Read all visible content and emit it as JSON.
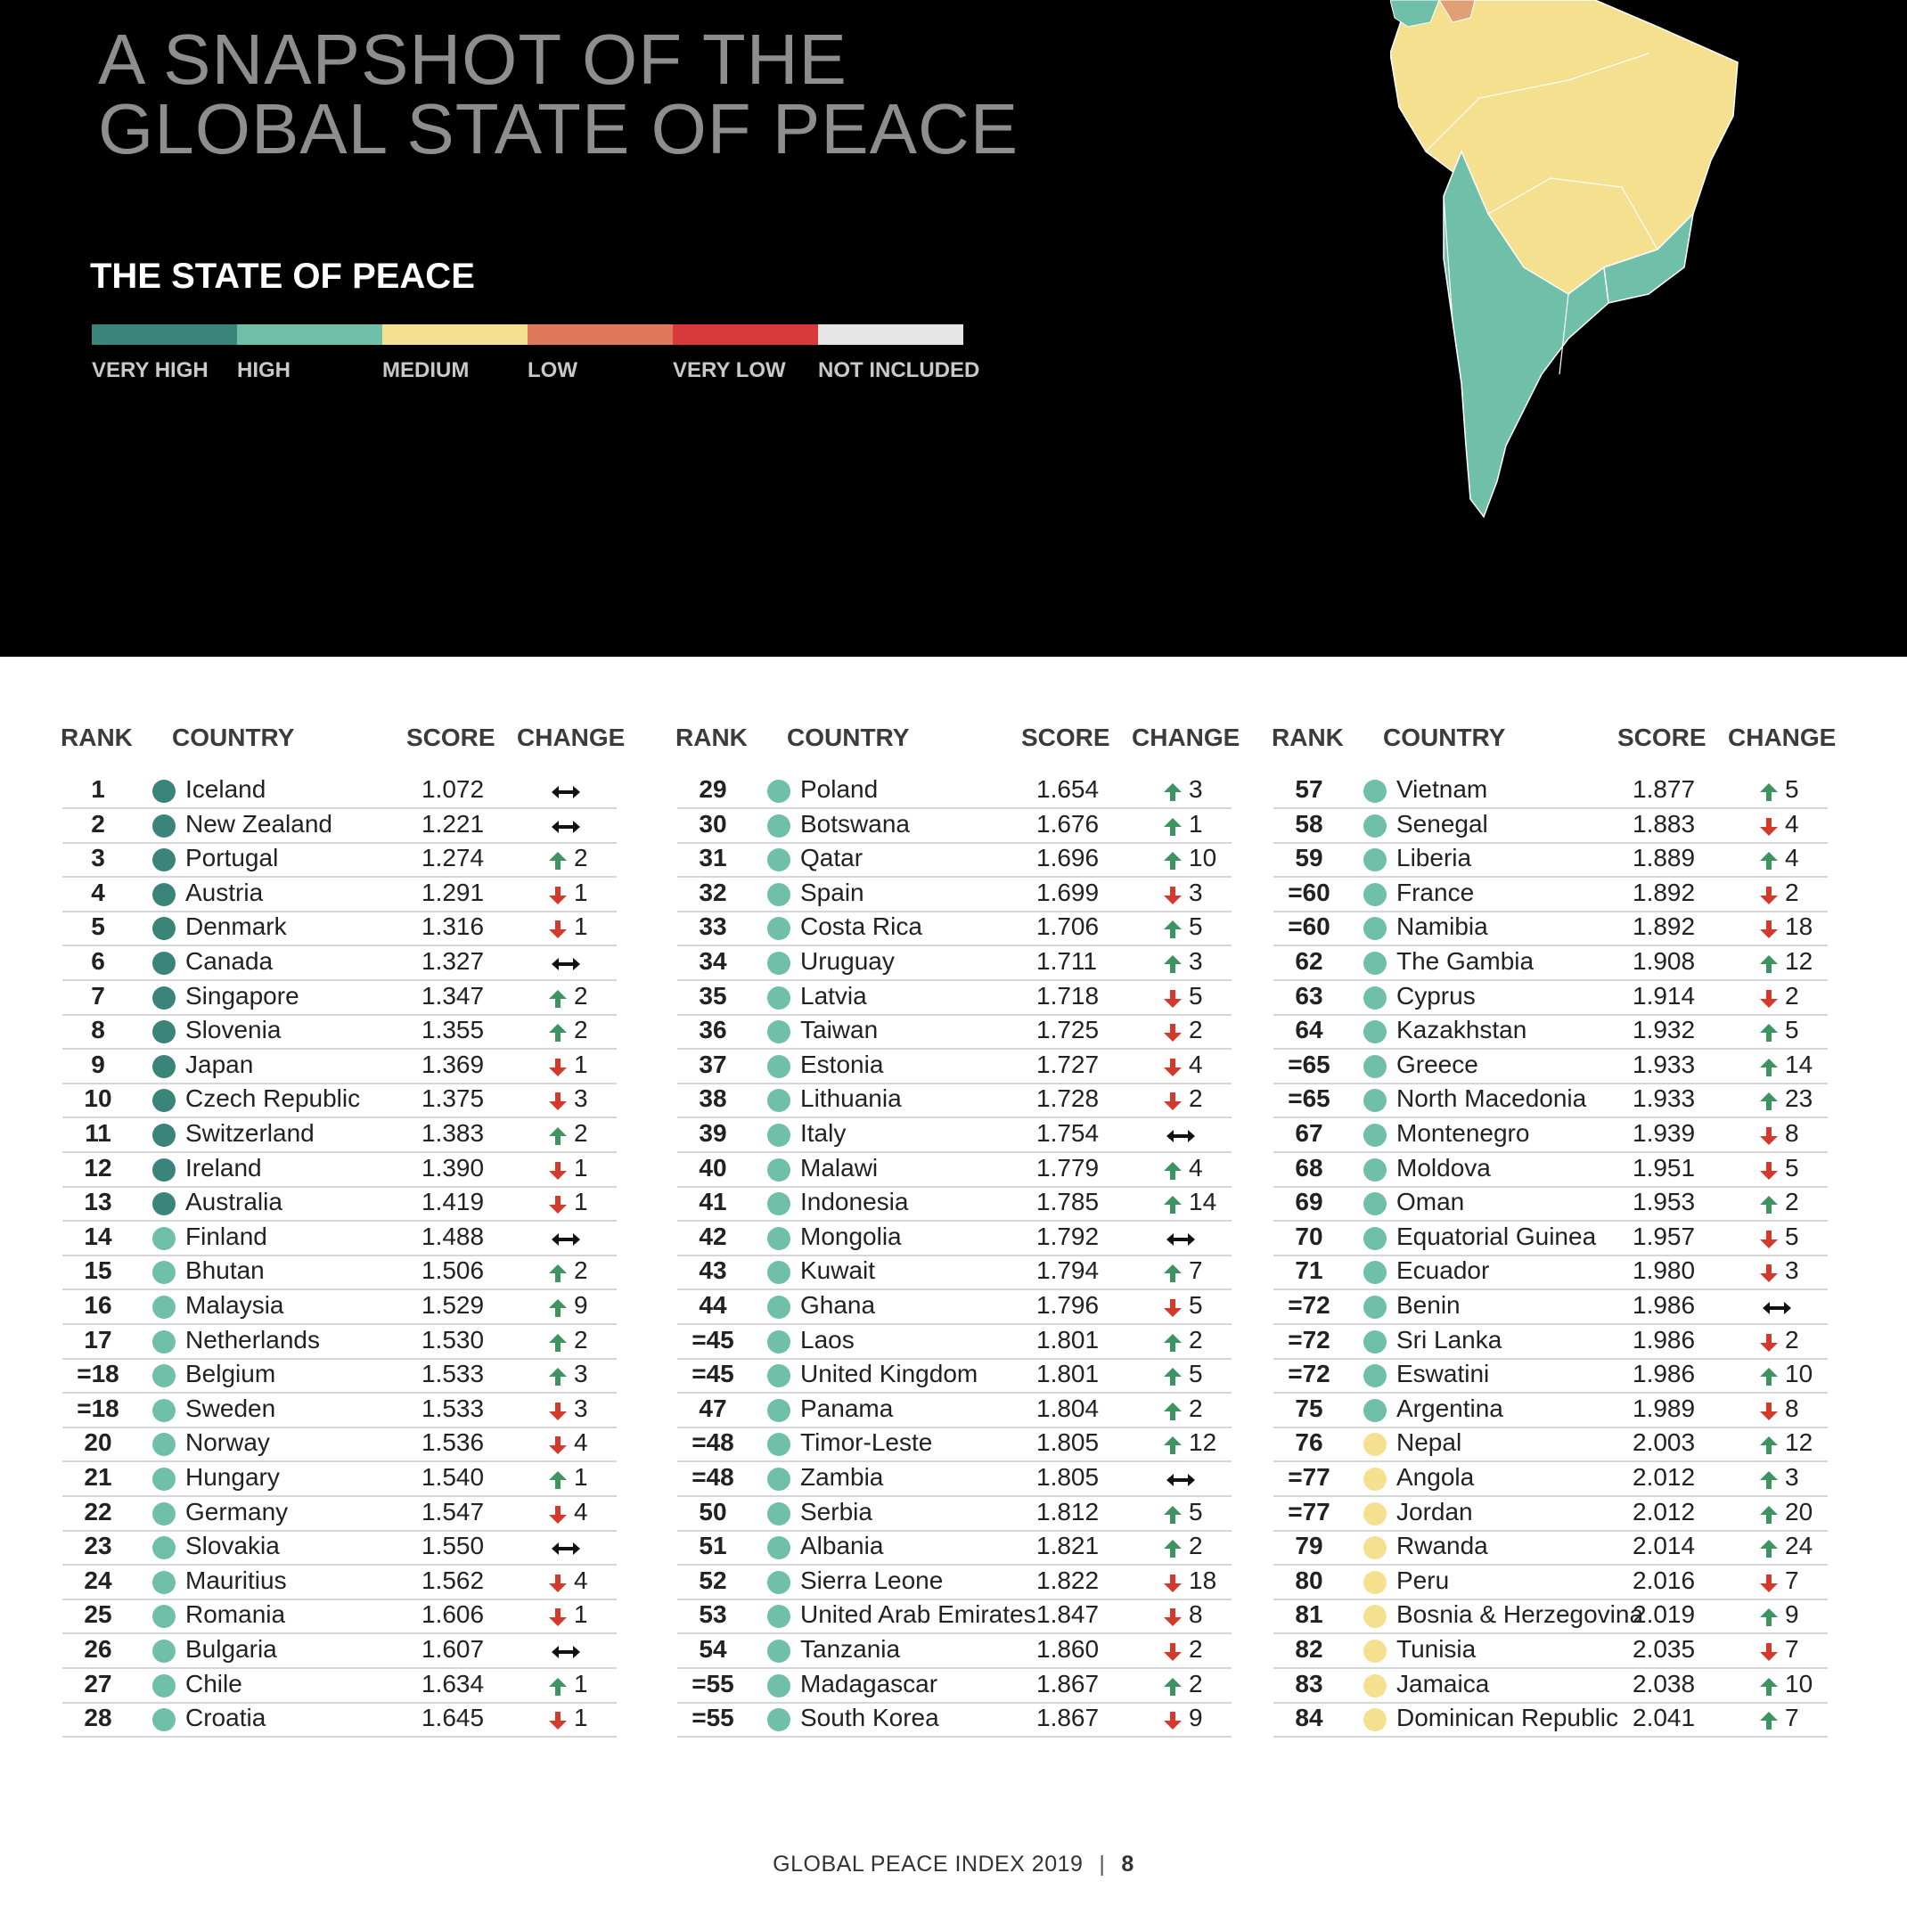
{
  "header": {
    "title_line1": "A SNAPSHOT OF THE",
    "title_line2": "GLOBAL STATE OF PEACE",
    "subtitle": "THE STATE OF PEACE"
  },
  "legend": [
    {
      "label": "VERY HIGH",
      "color": "#3a8479"
    },
    {
      "label": "HIGH",
      "color": "#6fbfa9"
    },
    {
      "label": "MEDIUM",
      "color": "#f5e08f"
    },
    {
      "label": "LOW",
      "color": "#e0785c"
    },
    {
      "label": "VERY LOW",
      "color": "#d8393a"
    },
    {
      "label": "NOT INCLUDED",
      "color": "#e6e6e6"
    }
  ],
  "columns": {
    "rank": "RANK",
    "country": "COUNTRY",
    "score": "SCORE",
    "change": "CHANGE"
  },
  "rows": [
    {
      "rank": "1",
      "country": "Iceland",
      "score": "1.072",
      "dir": "same",
      "change": "",
      "level": "very-high"
    },
    {
      "rank": "2",
      "country": "New Zealand",
      "score": "1.221",
      "dir": "same",
      "change": "",
      "level": "very-high"
    },
    {
      "rank": "3",
      "country": "Portugal",
      "score": "1.274",
      "dir": "up",
      "change": "2",
      "level": "very-high"
    },
    {
      "rank": "4",
      "country": "Austria",
      "score": "1.291",
      "dir": "down",
      "change": "1",
      "level": "very-high"
    },
    {
      "rank": "5",
      "country": "Denmark",
      "score": "1.316",
      "dir": "down",
      "change": "1",
      "level": "very-high"
    },
    {
      "rank": "6",
      "country": "Canada",
      "score": "1.327",
      "dir": "same",
      "change": "",
      "level": "very-high"
    },
    {
      "rank": "7",
      "country": "Singapore",
      "score": "1.347",
      "dir": "up",
      "change": "2",
      "level": "very-high"
    },
    {
      "rank": "8",
      "country": "Slovenia",
      "score": "1.355",
      "dir": "up",
      "change": "2",
      "level": "very-high"
    },
    {
      "rank": "9",
      "country": "Japan",
      "score": "1.369",
      "dir": "down",
      "change": "1",
      "level": "very-high"
    },
    {
      "rank": "10",
      "country": "Czech Republic",
      "score": "1.375",
      "dir": "down",
      "change": "3",
      "level": "very-high"
    },
    {
      "rank": "11",
      "country": "Switzerland",
      "score": "1.383",
      "dir": "up",
      "change": "2",
      "level": "very-high"
    },
    {
      "rank": "12",
      "country": "Ireland",
      "score": "1.390",
      "dir": "down",
      "change": "1",
      "level": "very-high"
    },
    {
      "rank": "13",
      "country": "Australia",
      "score": "1.419",
      "dir": "down",
      "change": "1",
      "level": "very-high"
    },
    {
      "rank": "14",
      "country": "Finland",
      "score": "1.488",
      "dir": "same",
      "change": "",
      "level": "high"
    },
    {
      "rank": "15",
      "country": "Bhutan",
      "score": "1.506",
      "dir": "up",
      "change": "2",
      "level": "high"
    },
    {
      "rank": "16",
      "country": "Malaysia",
      "score": "1.529",
      "dir": "up",
      "change": "9",
      "level": "high"
    },
    {
      "rank": "17",
      "country": "Netherlands",
      "score": "1.530",
      "dir": "up",
      "change": "2",
      "level": "high"
    },
    {
      "rank": "=18",
      "country": "Belgium",
      "score": "1.533",
      "dir": "up",
      "change": "3",
      "level": "high"
    },
    {
      "rank": "=18",
      "country": "Sweden",
      "score": "1.533",
      "dir": "down",
      "change": "3",
      "level": "high"
    },
    {
      "rank": "20",
      "country": "Norway",
      "score": "1.536",
      "dir": "down",
      "change": "4",
      "level": "high"
    },
    {
      "rank": "21",
      "country": "Hungary",
      "score": "1.540",
      "dir": "up",
      "change": "1",
      "level": "high"
    },
    {
      "rank": "22",
      "country": "Germany",
      "score": "1.547",
      "dir": "down",
      "change": "4",
      "level": "high"
    },
    {
      "rank": "23",
      "country": "Slovakia",
      "score": "1.550",
      "dir": "same",
      "change": "",
      "level": "high"
    },
    {
      "rank": "24",
      "country": "Mauritius",
      "score": "1.562",
      "dir": "down",
      "change": "4",
      "level": "high"
    },
    {
      "rank": "25",
      "country": "Romania",
      "score": "1.606",
      "dir": "down",
      "change": "1",
      "level": "high"
    },
    {
      "rank": "26",
      "country": "Bulgaria",
      "score": "1.607",
      "dir": "same",
      "change": "",
      "level": "high"
    },
    {
      "rank": "27",
      "country": "Chile",
      "score": "1.634",
      "dir": "up",
      "change": "1",
      "level": "high"
    },
    {
      "rank": "28",
      "country": "Croatia",
      "score": "1.645",
      "dir": "down",
      "change": "1",
      "level": "high"
    },
    {
      "rank": "29",
      "country": "Poland",
      "score": "1.654",
      "dir": "up",
      "change": "3",
      "level": "high"
    },
    {
      "rank": "30",
      "country": "Botswana",
      "score": "1.676",
      "dir": "up",
      "change": "1",
      "level": "high"
    },
    {
      "rank": "31",
      "country": "Qatar",
      "score": "1.696",
      "dir": "up",
      "change": "10",
      "level": "high"
    },
    {
      "rank": "32",
      "country": "Spain",
      "score": "1.699",
      "dir": "down",
      "change": "3",
      "level": "high"
    },
    {
      "rank": "33",
      "country": "Costa Rica",
      "score": "1.706",
      "dir": "up",
      "change": "5",
      "level": "high"
    },
    {
      "rank": "34",
      "country": "Uruguay",
      "score": "1.711",
      "dir": "up",
      "change": "3",
      "level": "high"
    },
    {
      "rank": "35",
      "country": "Latvia",
      "score": "1.718",
      "dir": "down",
      "change": "5",
      "level": "high"
    },
    {
      "rank": "36",
      "country": "Taiwan",
      "score": "1.725",
      "dir": "down",
      "change": "2",
      "level": "high"
    },
    {
      "rank": "37",
      "country": "Estonia",
      "score": "1.727",
      "dir": "down",
      "change": "4",
      "level": "high"
    },
    {
      "rank": "38",
      "country": "Lithuania",
      "score": "1.728",
      "dir": "down",
      "change": "2",
      "level": "high"
    },
    {
      "rank": "39",
      "country": "Italy",
      "score": "1.754",
      "dir": "same",
      "change": "",
      "level": "high"
    },
    {
      "rank": "40",
      "country": "Malawi",
      "score": "1.779",
      "dir": "up",
      "change": "4",
      "level": "high"
    },
    {
      "rank": "41",
      "country": "Indonesia",
      "score": "1.785",
      "dir": "up",
      "change": "14",
      "level": "high"
    },
    {
      "rank": "42",
      "country": "Mongolia",
      "score": "1.792",
      "dir": "same",
      "change": "",
      "level": "high"
    },
    {
      "rank": "43",
      "country": "Kuwait",
      "score": "1.794",
      "dir": "up",
      "change": "7",
      "level": "high"
    },
    {
      "rank": "44",
      "country": "Ghana",
      "score": "1.796",
      "dir": "down",
      "change": "5",
      "level": "high"
    },
    {
      "rank": "=45",
      "country": "Laos",
      "score": "1.801",
      "dir": "up",
      "change": "2",
      "level": "high"
    },
    {
      "rank": "=45",
      "country": "United Kingdom",
      "score": "1.801",
      "dir": "up",
      "change": "5",
      "level": "high"
    },
    {
      "rank": "47",
      "country": "Panama",
      "score": "1.804",
      "dir": "up",
      "change": "2",
      "level": "high"
    },
    {
      "rank": "=48",
      "country": "Timor-Leste",
      "score": "1.805",
      "dir": "up",
      "change": "12",
      "level": "high"
    },
    {
      "rank": "=48",
      "country": "Zambia",
      "score": "1.805",
      "dir": "same",
      "change": "",
      "level": "high"
    },
    {
      "rank": "50",
      "country": "Serbia",
      "score": "1.812",
      "dir": "up",
      "change": "5",
      "level": "high"
    },
    {
      "rank": "51",
      "country": "Albania",
      "score": "1.821",
      "dir": "up",
      "change": "2",
      "level": "high"
    },
    {
      "rank": "52",
      "country": "Sierra Leone",
      "score": "1.822",
      "dir": "down",
      "change": "18",
      "level": "high"
    },
    {
      "rank": "53",
      "country": "United Arab Emirates",
      "score": "1.847",
      "dir": "down",
      "change": "8",
      "level": "high"
    },
    {
      "rank": "54",
      "country": "Tanzania",
      "score": "1.860",
      "dir": "down",
      "change": "2",
      "level": "high"
    },
    {
      "rank": "=55",
      "country": "Madagascar",
      "score": "1.867",
      "dir": "up",
      "change": "2",
      "level": "high"
    },
    {
      "rank": "=55",
      "country": "South Korea",
      "score": "1.867",
      "dir": "down",
      "change": "9",
      "level": "high"
    },
    {
      "rank": "57",
      "country": "Vietnam",
      "score": "1.877",
      "dir": "up",
      "change": "5",
      "level": "high"
    },
    {
      "rank": "58",
      "country": "Senegal",
      "score": "1.883",
      "dir": "down",
      "change": "4",
      "level": "high"
    },
    {
      "rank": "59",
      "country": "Liberia",
      "score": "1.889",
      "dir": "up",
      "change": "4",
      "level": "high"
    },
    {
      "rank": "=60",
      "country": "France",
      "score": "1.892",
      "dir": "down",
      "change": "2",
      "level": "high"
    },
    {
      "rank": "=60",
      "country": "Namibia",
      "score": "1.892",
      "dir": "down",
      "change": "18",
      "level": "high"
    },
    {
      "rank": "62",
      "country": "The Gambia",
      "score": "1.908",
      "dir": "up",
      "change": "12",
      "level": "high"
    },
    {
      "rank": "63",
      "country": "Cyprus",
      "score": "1.914",
      "dir": "down",
      "change": "2",
      "level": "high"
    },
    {
      "rank": "64",
      "country": "Kazakhstan",
      "score": "1.932",
      "dir": "up",
      "change": "5",
      "level": "high"
    },
    {
      "rank": "=65",
      "country": "Greece",
      "score": "1.933",
      "dir": "up",
      "change": "14",
      "level": "high"
    },
    {
      "rank": "=65",
      "country": "North Macedonia",
      "score": "1.933",
      "dir": "up",
      "change": "23",
      "level": "high"
    },
    {
      "rank": "67",
      "country": "Montenegro",
      "score": "1.939",
      "dir": "down",
      "change": "8",
      "level": "high"
    },
    {
      "rank": "68",
      "country": "Moldova",
      "score": "1.951",
      "dir": "down",
      "change": "5",
      "level": "high"
    },
    {
      "rank": "69",
      "country": "Oman",
      "score": "1.953",
      "dir": "up",
      "change": "2",
      "level": "high"
    },
    {
      "rank": "70",
      "country": "Equatorial Guinea",
      "score": "1.957",
      "dir": "down",
      "change": "5",
      "level": "high"
    },
    {
      "rank": "71",
      "country": "Ecuador",
      "score": "1.980",
      "dir": "down",
      "change": "3",
      "level": "high"
    },
    {
      "rank": "=72",
      "country": "Benin",
      "score": "1.986",
      "dir": "same",
      "change": "",
      "level": "high"
    },
    {
      "rank": "=72",
      "country": "Sri Lanka",
      "score": "1.986",
      "dir": "down",
      "change": "2",
      "level": "high"
    },
    {
      "rank": "=72",
      "country": "Eswatini",
      "score": "1.986",
      "dir": "up",
      "change": "10",
      "level": "high"
    },
    {
      "rank": "75",
      "country": "Argentina",
      "score": "1.989",
      "dir": "down",
      "change": "8",
      "level": "high"
    },
    {
      "rank": "76",
      "country": "Nepal",
      "score": "2.003",
      "dir": "up",
      "change": "12",
      "level": "medium"
    },
    {
      "rank": "=77",
      "country": "Angola",
      "score": "2.012",
      "dir": "up",
      "change": "3",
      "level": "medium"
    },
    {
      "rank": "=77",
      "country": "Jordan",
      "score": "2.012",
      "dir": "up",
      "change": "20",
      "level": "medium"
    },
    {
      "rank": "79",
      "country": "Rwanda",
      "score": "2.014",
      "dir": "up",
      "change": "24",
      "level": "medium"
    },
    {
      "rank": "80",
      "country": "Peru",
      "score": "2.016",
      "dir": "down",
      "change": "7",
      "level": "medium"
    },
    {
      "rank": "81",
      "country": "Bosnia & Herzegovina",
      "score": "2.019",
      "dir": "up",
      "change": "9",
      "level": "medium"
    },
    {
      "rank": "82",
      "country": "Tunisia",
      "score": "2.035",
      "dir": "down",
      "change": "7",
      "level": "medium"
    },
    {
      "rank": "83",
      "country": "Jamaica",
      "score": "2.038",
      "dir": "up",
      "change": "10",
      "level": "medium"
    },
    {
      "rank": "84",
      "country": "Dominican Republic",
      "score": "2.041",
      "dir": "up",
      "change": "7",
      "level": "medium"
    }
  ],
  "level_colors": {
    "very-high": "#3a8479",
    "high": "#6fbfa9",
    "medium": "#f5e08f"
  },
  "arrow_colors": {
    "up": "#3d9460",
    "down": "#d33a2c",
    "same": "#111111"
  },
  "footer": {
    "publication": "GLOBAL PEACE INDEX 2019",
    "separator": "|",
    "page": "8"
  }
}
